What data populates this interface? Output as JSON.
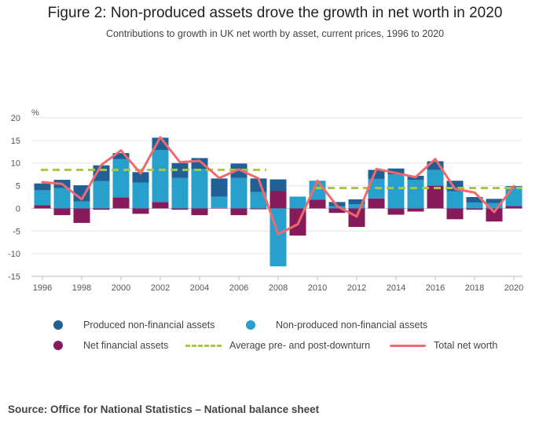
{
  "title": "Figure 2: Non-produced assets drove the growth in net worth in 2020",
  "subtitle": "Contributions to growth in UK net worth by asset, current prices, 1996 to 2020",
  "source": "Source: Office for National Statistics – National balance sheet",
  "colors": {
    "produced": "#206095",
    "nonproduced": "#27a0cc",
    "financial": "#871a5b",
    "average": "#a8c844",
    "total": "#ee6a6e"
  },
  "legend": {
    "produced": "Produced non-financial assets",
    "nonproduced": "Non-produced non-financial assets",
    "financial": "Net financial assets",
    "average": "Average pre- and post-downturn",
    "total": "Total net worth"
  },
  "chart_data": {
    "type": "bar",
    "stacked": true,
    "ylabel": "%",
    "ylim": [
      -15,
      20
    ],
    "yticks": [
      -15,
      -10,
      -5,
      0,
      5,
      10,
      15,
      20
    ],
    "xticks": [
      1996,
      1998,
      2000,
      2002,
      2004,
      2006,
      2008,
      2010,
      2012,
      2014,
      2016,
      2018,
      2020
    ],
    "categories": [
      1996,
      1997,
      1998,
      1999,
      2000,
      2001,
      2002,
      2003,
      2004,
      2005,
      2006,
      2007,
      2008,
      2009,
      2010,
      2011,
      2012,
      2013,
      2014,
      2015,
      2016,
      2017,
      2018,
      2019,
      2020
    ],
    "series": [
      {
        "name": "Net financial assets",
        "key": "financial",
        "values": [
          0.7,
          -1.5,
          -3.2,
          -0.3,
          2.4,
          -1.2,
          1.4,
          -0.3,
          -1.5,
          0.1,
          -1.5,
          -0.2,
          3.8,
          -6.0,
          1.9,
          -1.0,
          -4.1,
          2.2,
          -1.4,
          -0.7,
          5.0,
          -2.4,
          -0.3,
          -2.9,
          0.5
        ]
      },
      {
        "name": "Non-produced non-financial assets",
        "key": "nonproduced",
        "values": [
          3.3,
          4.5,
          1.5,
          6.0,
          8.5,
          5.7,
          11.5,
          6.7,
          8.7,
          2.5,
          6.7,
          3.6,
          -12.8,
          2.6,
          4.2,
          0.5,
          0.9,
          4.3,
          7.5,
          6.3,
          3.5,
          3.8,
          1.3,
          1.2,
          4.1
        ]
      },
      {
        "name": "Produced non-financial assets",
        "key": "produced",
        "values": [
          1.5,
          1.8,
          3.6,
          3.5,
          1.3,
          2.3,
          2.7,
          3.3,
          2.4,
          4.0,
          3.2,
          3.0,
          2.6,
          0.0,
          0.0,
          0.9,
          1.1,
          2.0,
          1.3,
          0.9,
          1.9,
          2.3,
          1.2,
          0.9,
          0.3
        ]
      }
    ],
    "total": {
      "name": "Total net worth",
      "values": [
        5.8,
        5.4,
        2.0,
        9.6,
        12.8,
        7.7,
        15.7,
        10.2,
        10.5,
        6.7,
        8.6,
        6.6,
        -5.7,
        -3.5,
        6.1,
        0.5,
        -1.8,
        8.7,
        7.8,
        6.9,
        10.9,
        4.3,
        3.5,
        -0.8,
        4.9
      ]
    },
    "average": [
      {
        "name": "Pre-downturn average",
        "from": 1996,
        "to": 2007,
        "value": 8.5
      },
      {
        "name": "Post-downturn average",
        "from": 2010,
        "to": 2020,
        "value": 4.5
      }
    ]
  }
}
